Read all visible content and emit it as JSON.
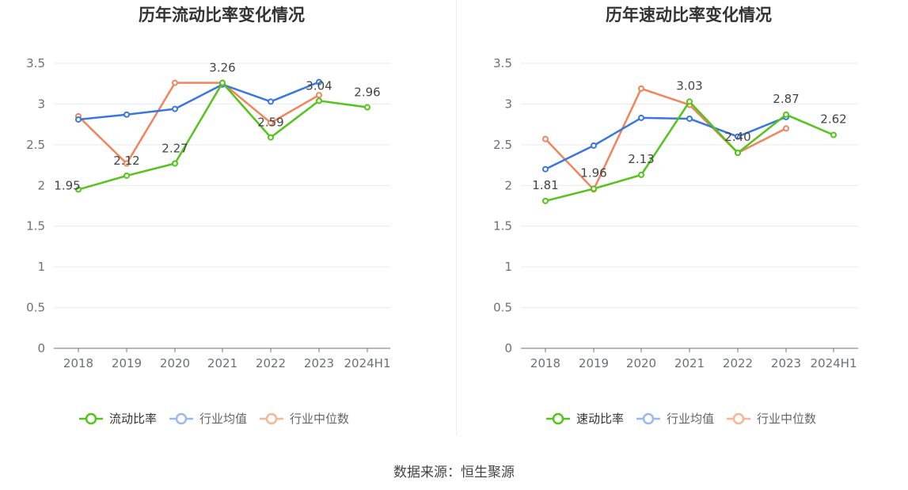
{
  "source_text": "数据来源：恒生聚源",
  "chart_data": [
    {
      "type": "line",
      "title": "历年流动比率变化情况",
      "categories": [
        "2018",
        "2019",
        "2020",
        "2021",
        "2022",
        "2023",
        "2024H1"
      ],
      "ylim": [
        0,
        3.5
      ],
      "yticks": [
        "0",
        "0.5",
        "1",
        "1.5",
        "2",
        "2.5",
        "3",
        "3.5"
      ],
      "grid": true,
      "legend_position": "bottom",
      "series": [
        {
          "name": "流动比率",
          "color": "#52c41a",
          "values": [
            1.95,
            2.12,
            2.27,
            3.26,
            2.59,
            3.04,
            2.96
          ],
          "labels": [
            "1.95",
            "2.12",
            "2.27",
            "3.26",
            "2.59",
            "3.04",
            "2.96"
          ]
        },
        {
          "name": "行业均值",
          "color": "#3a76e0",
          "values": [
            2.81,
            2.87,
            2.94,
            3.24,
            3.03,
            3.27,
            null
          ]
        },
        {
          "name": "行业中位数",
          "color": "#f0845a",
          "values": [
            2.85,
            2.27,
            3.26,
            3.26,
            2.77,
            3.11,
            null
          ]
        }
      ]
    },
    {
      "type": "line",
      "title": "历年速动比率变化情况",
      "categories": [
        "2018",
        "2019",
        "2020",
        "2021",
        "2022",
        "2023",
        "2024H1"
      ],
      "ylim": [
        0,
        3.5
      ],
      "yticks": [
        "0",
        "0.5",
        "1",
        "1.5",
        "2",
        "2.5",
        "3",
        "3.5"
      ],
      "grid": true,
      "legend_position": "bottom",
      "series": [
        {
          "name": "速动比率",
          "color": "#52c41a",
          "values": [
            1.81,
            1.96,
            2.13,
            3.03,
            2.4,
            2.87,
            2.62
          ],
          "labels": [
            "1.81",
            "1.96",
            "2.13",
            "3.03",
            "2.40",
            "2.87",
            "2.62"
          ]
        },
        {
          "name": "行业均值",
          "color": "#3a76e0",
          "values": [
            2.2,
            2.49,
            2.83,
            2.82,
            2.6,
            2.84,
            null
          ]
        },
        {
          "name": "行业中位数",
          "color": "#f0845a",
          "values": [
            2.57,
            1.95,
            3.19,
            2.99,
            2.4,
            2.7,
            null
          ]
        }
      ]
    }
  ]
}
